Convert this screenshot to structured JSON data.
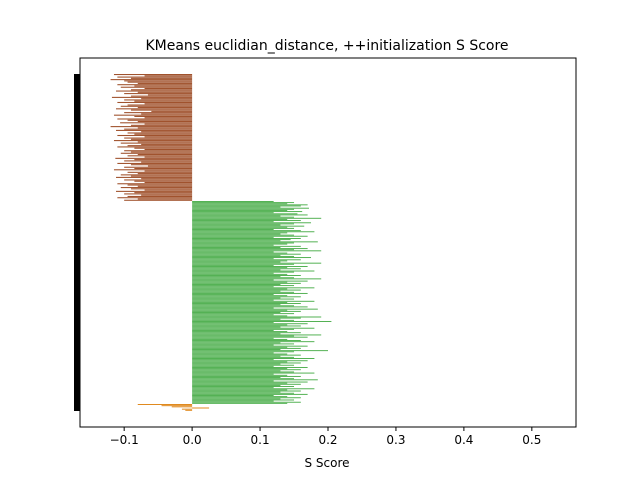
{
  "chart_data": {
    "type": "bar",
    "orientation": "horizontal",
    "title": "KMeans euclidian_distance, ++initialization S Score",
    "xlabel": "S Score",
    "ylabel": "",
    "xlim": [
      -0.165,
      0.565
    ],
    "xticks": [
      -0.1,
      0.0,
      0.1,
      0.2,
      0.3,
      0.4,
      0.5
    ],
    "xtick_labels": [
      "−0.1",
      "0.0",
      "0.1",
      "0.2",
      "0.3",
      "0.4",
      "0.5"
    ],
    "grid": false,
    "marker_bar": true,
    "clusters": [
      {
        "color": "#a0522d",
        "values": [
          -0.115,
          -0.07,
          -0.11,
          -0.09,
          -0.12,
          -0.1,
          -0.095,
          -0.08,
          -0.11,
          -0.085,
          -0.105,
          -0.07,
          -0.09,
          -0.112,
          -0.08,
          -0.1,
          -0.065,
          -0.09,
          -0.118,
          -0.075,
          -0.1,
          -0.085,
          -0.11,
          -0.07,
          -0.095,
          -0.105,
          -0.08,
          -0.112,
          -0.09,
          -0.06,
          -0.1,
          -0.075,
          -0.115,
          -0.085,
          -0.07,
          -0.11,
          -0.095,
          -0.08,
          -0.106,
          -0.07,
          -0.09,
          -0.12,
          -0.08,
          -0.1,
          -0.112,
          -0.075,
          -0.095,
          -0.085,
          -0.11,
          -0.07,
          -0.1,
          -0.09,
          -0.115,
          -0.08,
          -0.105,
          -0.075,
          -0.095,
          -0.11,
          -0.085,
          -0.07,
          -0.1,
          -0.09,
          -0.105,
          -0.08,
          -0.095,
          -0.07,
          -0.113,
          -0.085,
          -0.1,
          -0.075,
          -0.11,
          -0.09,
          -0.065,
          -0.1,
          -0.085,
          -0.115,
          -0.07,
          -0.095,
          -0.08,
          -0.105,
          -0.09,
          -0.112,
          -0.075,
          -0.1,
          -0.085,
          -0.07,
          -0.11,
          -0.095,
          -0.08,
          -0.105,
          -0.09,
          -0.07,
          -0.112,
          -0.085,
          -0.1,
          -0.075,
          -0.095,
          -0.11,
          -0.08,
          -0.1
        ]
      },
      {
        "color": "#4cae4c",
        "values": [
          0.12,
          0.15,
          0.14,
          0.17,
          0.16,
          0.13,
          0.172,
          0.15,
          0.14,
          0.162,
          0.12,
          0.155,
          0.17,
          0.13,
          0.15,
          0.19,
          0.14,
          0.16,
          0.12,
          0.175,
          0.15,
          0.13,
          0.165,
          0.14,
          0.15,
          0.12,
          0.16,
          0.18,
          0.14,
          0.13,
          0.15,
          0.17,
          0.12,
          0.16,
          0.145,
          0.13,
          0.185,
          0.15,
          0.14,
          0.12,
          0.16,
          0.13,
          0.17,
          0.15,
          0.19,
          0.12,
          0.14,
          0.16,
          0.13,
          0.15,
          0.175,
          0.12,
          0.16,
          0.14,
          0.13,
          0.19,
          0.15,
          0.12,
          0.17,
          0.14,
          0.16,
          0.13,
          0.18,
          0.15,
          0.12,
          0.14,
          0.16,
          0.13,
          0.15,
          0.19,
          0.12,
          0.17,
          0.14,
          0.16,
          0.13,
          0.15,
          0.12,
          0.18,
          0.14,
          0.16,
          0.13,
          0.15,
          0.17,
          0.12,
          0.14,
          0.16,
          0.13,
          0.15,
          0.12,
          0.18,
          0.14,
          0.16,
          0.13,
          0.15,
          0.17,
          0.12,
          0.185,
          0.14,
          0.16,
          0.13,
          0.15,
          0.12,
          0.14,
          0.19,
          0.16,
          0.13,
          0.15,
          0.205,
          0.12,
          0.17,
          0.14,
          0.16,
          0.13,
          0.18,
          0.15,
          0.12,
          0.14,
          0.16,
          0.13,
          0.19,
          0.15,
          0.17,
          0.12,
          0.14,
          0.16,
          0.18,
          0.13,
          0.15,
          0.12,
          0.17,
          0.14,
          0.16,
          0.13,
          0.2,
          0.15,
          0.12,
          0.14,
          0.16,
          0.13,
          0.15,
          0.18,
          0.12,
          0.17,
          0.14,
          0.16,
          0.13,
          0.15,
          0.12,
          0.17,
          0.14,
          0.16,
          0.13,
          0.15,
          0.18,
          0.12,
          0.14,
          0.16,
          0.13,
          0.15,
          0.185,
          0.12,
          0.17,
          0.14,
          0.16,
          0.13,
          0.15,
          0.12,
          0.18,
          0.14,
          0.16,
          0.13,
          0.15,
          0.17,
          0.12,
          0.14,
          0.16,
          0.13,
          0.15,
          0.12,
          0.16,
          0.14
        ]
      },
      {
        "color": "#e08a1e",
        "values": [
          -0.08,
          -0.045,
          -0.03,
          0.025,
          -0.015,
          -0.01
        ]
      }
    ]
  }
}
